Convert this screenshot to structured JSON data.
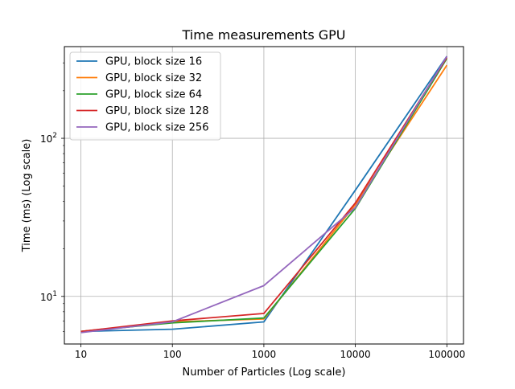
{
  "chart_data": {
    "type": "line",
    "title": "Time measurements GPU",
    "xlabel": "Number of Particles (Log scale)",
    "ylabel": "Time (ms) (Log scale)",
    "xscale": "log",
    "yscale": "log",
    "x": [
      10,
      100,
      1000,
      10000,
      100000
    ],
    "xtick_labels": [
      "10",
      "100",
      "1000",
      "10000",
      "100000"
    ],
    "ytick_labels": [
      {
        "base": "10",
        "exp": "1",
        "value": 10
      },
      {
        "base": "10",
        "exp": "2",
        "value": 100
      }
    ],
    "xlim": [
      6.6,
      152000
    ],
    "ylim": [
      5.0,
      380
    ],
    "grid": true,
    "legend_position": "upper-left",
    "series": [
      {
        "name": "GPU, block size 16",
        "color": "#1f77b4",
        "values": [
          6.0,
          6.2,
          6.9,
          47.0,
          330.0
        ]
      },
      {
        "name": "GPU, block size 32",
        "color": "#ff7f0e",
        "values": [
          6.0,
          6.9,
          7.2,
          38.0,
          290.0
        ]
      },
      {
        "name": "GPU, block size 64",
        "color": "#2ca02c",
        "values": [
          6.0,
          6.8,
          7.3,
          36.0,
          320.0
        ]
      },
      {
        "name": "GPU, block size 128",
        "color": "#d62728",
        "values": [
          6.0,
          7.0,
          7.8,
          39.0,
          325.0
        ]
      },
      {
        "name": "GPU, block size 256",
        "color": "#9467bd",
        "values": [
          5.9,
          6.9,
          11.7,
          36.5,
          330.0
        ]
      }
    ]
  }
}
